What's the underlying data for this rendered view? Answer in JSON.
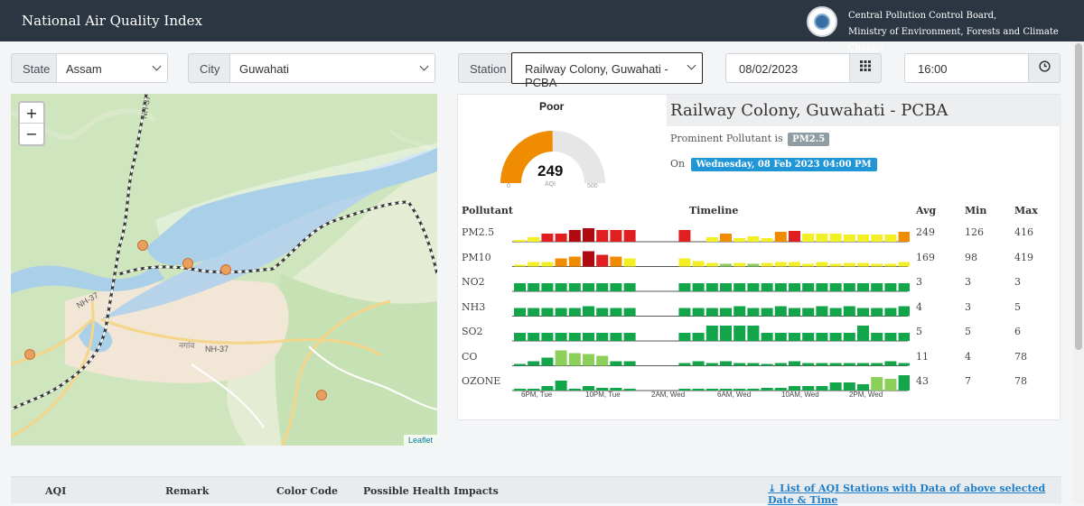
{
  "header": {
    "title": "National Air Quality Index",
    "org_line1": "Central Pollution Control Board,",
    "org_line2": "Ministry of Environment, Forests and Climate Change"
  },
  "filters": {
    "state_label": "State",
    "state_value": "Assam",
    "city_label": "City",
    "city_value": "Guwahati",
    "station_label": "Station",
    "station_value": "Railway Colony, Guwahati - PCBA",
    "date_value": "08/02/2023",
    "time_value": "16:00"
  },
  "map": {
    "zoom_in": "+",
    "zoom_out": "−",
    "road_labels": [
      "NH-37",
      "NH-37",
      "NH-37"
    ],
    "place_label": "नगांव",
    "attribution": "Leaflet",
    "marker_color": "#e8a060"
  },
  "station": {
    "remark": "Poor",
    "aqi": "249",
    "aqi_label": "AQI",
    "gauge_min": "0",
    "gauge_max": "500",
    "gauge_fraction": 0.498,
    "gauge_color": "#f08c00",
    "name": "Railway Colony, Guwahati - PCBA",
    "prominent_text": "Prominent Pollutant is",
    "prominent_pollutant": "PM2.5",
    "on_text": "On",
    "datetime": "Wednesday, 08 Feb 2023 04:00 PM"
  },
  "table": {
    "headers": {
      "pollutant": "Pollutant",
      "timeline": "Timeline",
      "avg": "Avg",
      "min": "Min",
      "max": "Max"
    },
    "tick_labels": [
      "6PM, Tue",
      "10PM, Tue",
      "2AM, Wed",
      "6AM, Wed",
      "10AM, Wed",
      "2PM, Wed"
    ],
    "rows": [
      {
        "name": "PM2.5",
        "avg": "249",
        "min": "126",
        "max": "416",
        "bars": [
          2,
          5,
          9,
          9,
          13,
          15,
          13,
          13,
          13,
          0,
          0,
          0,
          13,
          0,
          5,
          9,
          4,
          6,
          4,
          11,
          12,
          9,
          9,
          9,
          8,
          8,
          8,
          8,
          11
        ],
        "colors": [
          "y",
          "y",
          "r",
          "r",
          "d",
          "d",
          "r",
          "r",
          "r",
          "n",
          "n",
          "n",
          "r",
          "n",
          "y",
          "o",
          "y",
          "y",
          "y",
          "o",
          "r",
          "y",
          "y",
          "y",
          "y",
          "y",
          "y",
          "y",
          "o"
        ]
      },
      {
        "name": "PM10",
        "avg": "169",
        "min": "98",
        "max": "419",
        "bars": [
          2,
          5,
          5,
          9,
          11,
          17,
          13,
          11,
          9,
          0,
          0,
          0,
          9,
          6,
          4,
          3,
          4,
          3,
          4,
          5,
          5,
          3,
          5,
          3,
          4,
          4,
          3,
          3,
          5
        ],
        "colors": [
          "y",
          "y",
          "y",
          "o",
          "o",
          "d",
          "r",
          "o",
          "y",
          "n",
          "n",
          "n",
          "y",
          "y",
          "y",
          "g2",
          "y",
          "g2",
          "y",
          "y",
          "y",
          "y",
          "y",
          "y",
          "y",
          "y",
          "y",
          "y",
          "y"
        ]
      },
      {
        "name": "NO2",
        "avg": "3",
        "min": "3",
        "max": "3",
        "bars": [
          9,
          9,
          9,
          9,
          9,
          9,
          9,
          9,
          9,
          0,
          0,
          0,
          9,
          9,
          9,
          9,
          9,
          9,
          9,
          9,
          9,
          9,
          9,
          9,
          9,
          9,
          9,
          9,
          9
        ],
        "colors": [
          "g",
          "g",
          "g",
          "g",
          "g",
          "g",
          "g",
          "g",
          "g",
          "n",
          "n",
          "n",
          "g",
          "g",
          "g",
          "g",
          "g",
          "g",
          "g",
          "g",
          "g",
          "g",
          "g",
          "g",
          "g",
          "g",
          "g",
          "g",
          "g"
        ]
      },
      {
        "name": "NH3",
        "avg": "4",
        "min": "3",
        "max": "5",
        "bars": [
          9,
          9,
          9,
          9,
          9,
          11,
          9,
          9,
          9,
          0,
          0,
          0,
          9,
          9,
          9,
          9,
          11,
          9,
          9,
          11,
          9,
          9,
          11,
          9,
          11,
          9,
          9,
          9,
          11
        ],
        "colors": [
          "g",
          "g",
          "g",
          "g",
          "g",
          "g",
          "g",
          "g",
          "g",
          "n",
          "n",
          "n",
          "g",
          "g",
          "g",
          "g",
          "g",
          "g",
          "g",
          "g",
          "g",
          "g",
          "g",
          "g",
          "g",
          "g",
          "g",
          "g",
          "g"
        ]
      },
      {
        "name": "SO2",
        "avg": "5",
        "min": "5",
        "max": "6",
        "bars": [
          9,
          9,
          9,
          9,
          9,
          9,
          9,
          9,
          9,
          0,
          0,
          0,
          9,
          9,
          17,
          17,
          17,
          17,
          9,
          9,
          9,
          9,
          9,
          9,
          9,
          17,
          9,
          9,
          9
        ],
        "colors": [
          "g",
          "g",
          "g",
          "g",
          "g",
          "g",
          "g",
          "g",
          "g",
          "n",
          "n",
          "n",
          "g",
          "g",
          "g",
          "g",
          "g",
          "g",
          "g",
          "g",
          "g",
          "g",
          "g",
          "g",
          "g",
          "g",
          "g",
          "g",
          "g"
        ]
      },
      {
        "name": "CO",
        "avg": "11",
        "min": "4",
        "max": "78",
        "bars": [
          2,
          5,
          9,
          17,
          14,
          13,
          11,
          5,
          5,
          0,
          0,
          0,
          3,
          5,
          3,
          5,
          3,
          3,
          2,
          3,
          5,
          3,
          3,
          3,
          3,
          3,
          3,
          5,
          3
        ],
        "colors": [
          "g",
          "g",
          "g",
          "g2",
          "g2",
          "g2",
          "g2",
          "g",
          "g",
          "n",
          "n",
          "n",
          "g",
          "g",
          "g",
          "g",
          "g",
          "g",
          "g",
          "g",
          "g",
          "g",
          "g",
          "g",
          "g",
          "g",
          "g",
          "g",
          "g"
        ]
      },
      {
        "name": "OZONE",
        "avg": "43",
        "min": "7",
        "max": "78",
        "bars": [
          2,
          2,
          5,
          11,
          2,
          5,
          3,
          3,
          2,
          0,
          0,
          0,
          2,
          2,
          2,
          2,
          2,
          2,
          3,
          3,
          5,
          5,
          5,
          9,
          9,
          7,
          15,
          13,
          17
        ],
        "colors": [
          "g",
          "g",
          "g",
          "g",
          "g",
          "g",
          "g",
          "g",
          "g",
          "n",
          "n",
          "n",
          "g",
          "g",
          "g",
          "g",
          "g",
          "g",
          "g",
          "g",
          "g",
          "g",
          "g",
          "g",
          "g",
          "g",
          "g2",
          "g2",
          "g"
        ]
      }
    ]
  },
  "bar_colors": {
    "y": "#f2f024",
    "o": "#f08c00",
    "r": "#e02020",
    "d": "#b00a10",
    "g": "#13a54a",
    "g2": "#8ccf5a"
  },
  "legend": {
    "aqi": "AQI",
    "remark": "Remark",
    "color_code": "Color Code",
    "health": "Possible Health Impacts",
    "link": "List of AQI Stations with Data of above selected Date & Time"
  }
}
